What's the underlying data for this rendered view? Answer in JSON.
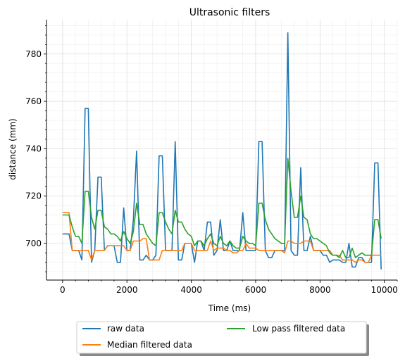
{
  "chart_data": {
    "type": "line",
    "title": "Ultrasonic filters",
    "xlabel": "Time (ms)",
    "ylabel": "distance (mm)",
    "xlim": [
      -500,
      10400
    ],
    "ylim": [
      684.5,
      794.5
    ],
    "xticks": [
      0,
      2000,
      4000,
      6000,
      8000,
      10000
    ],
    "yticks": [
      700,
      720,
      740,
      760,
      780
    ],
    "grid": true,
    "legend": "bottom-center-outside",
    "series": [
      {
        "name": "raw data",
        "color": "#1f77b4",
        "x": [
          0,
          100,
          200,
          300,
          400,
          500,
          600,
          700,
          800,
          900,
          1000,
          1100,
          1200,
          1300,
          1400,
          1500,
          1600,
          1700,
          1800,
          1900,
          2000,
          2100,
          2200,
          2300,
          2400,
          2500,
          2600,
          2700,
          2800,
          2900,
          3000,
          3100,
          3200,
          3300,
          3400,
          3500,
          3600,
          3700,
          3800,
          3900,
          4000,
          4100,
          4200,
          4300,
          4400,
          4500,
          4600,
          4700,
          4800,
          4900,
          5000,
          5100,
          5200,
          5300,
          5400,
          5500,
          5600,
          5700,
          5800,
          5900,
          6000,
          6100,
          6200,
          6300,
          6400,
          6500,
          6600,
          6700,
          6800,
          6900,
          7000,
          7100,
          7200,
          7300,
          7400,
          7500,
          7600,
          7700,
          7800,
          7900,
          8000,
          8100,
          8200,
          8300,
          8400,
          8500,
          8600,
          8700,
          8800,
          8900,
          9000,
          9100,
          9200,
          9300,
          9400,
          9500,
          9600,
          9700,
          9800,
          9900
        ],
        "y": [
          704,
          704,
          704,
          697,
          697,
          697,
          693,
          757,
          757,
          692,
          697,
          728,
          728,
          697,
          699,
          699,
          699,
          692,
          692,
          715,
          697,
          697,
          710,
          739,
          693,
          693,
          695,
          693,
          693,
          695,
          737,
          737,
          697,
          697,
          697,
          743,
          693,
          693,
          700,
          700,
          700,
          692,
          701,
          701,
          697,
          709,
          709,
          695,
          697,
          710,
          697,
          697,
          701,
          697,
          697,
          697,
          713,
          697,
          697,
          697,
          697,
          743,
          743,
          697,
          694,
          694,
          697,
          697,
          697,
          697,
          789,
          697,
          695,
          695,
          732,
          697,
          697,
          703,
          697,
          697,
          697,
          695,
          695,
          692,
          693,
          693,
          693,
          692,
          692,
          700,
          690,
          690,
          694,
          694,
          692,
          692,
          692,
          734,
          734,
          689
        ]
      },
      {
        "name": "Median filtered data",
        "color": "#ff7f0e",
        "x": [
          0,
          100,
          200,
          300,
          400,
          500,
          600,
          700,
          800,
          900,
          1000,
          1100,
          1200,
          1300,
          1400,
          1500,
          1600,
          1700,
          1800,
          1900,
          2000,
          2100,
          2200,
          2300,
          2400,
          2500,
          2600,
          2700,
          2800,
          2900,
          3000,
          3100,
          3200,
          3300,
          3400,
          3500,
          3600,
          3700,
          3800,
          3900,
          4000,
          4100,
          4200,
          4300,
          4400,
          4500,
          4600,
          4700,
          4800,
          4900,
          5000,
          5100,
          5200,
          5300,
          5400,
          5500,
          5600,
          5700,
          5800,
          5900,
          6000,
          6100,
          6200,
          6300,
          6400,
          6500,
          6600,
          6700,
          6800,
          6900,
          7000,
          7100,
          7200,
          7300,
          7400,
          7500,
          7600,
          7700,
          7800,
          7900,
          8000,
          8100,
          8200,
          8300,
          8400,
          8500,
          8600,
          8700,
          8800,
          8900,
          9000,
          9100,
          9200,
          9300,
          9400,
          9500,
          9600,
          9700,
          9800,
          9900
        ],
        "y": [
          713,
          713,
          713,
          697,
          697,
          697,
          697,
          697,
          697,
          693,
          697,
          697,
          697,
          697,
          699,
          699,
          699,
          699,
          699,
          699,
          697,
          697,
          701,
          701,
          701,
          702,
          702,
          693,
          693,
          693,
          693,
          697,
          697,
          697,
          697,
          697,
          697,
          697,
          700,
          700,
          700,
          697,
          697,
          697,
          697,
          697,
          701,
          697,
          698,
          698,
          698,
          697,
          697,
          696,
          696,
          697,
          697,
          700,
          698,
          698,
          698,
          697,
          697,
          697,
          697,
          697,
          697,
          697,
          697,
          696,
          701,
          701,
          700,
          700,
          700,
          701,
          701,
          701,
          697,
          697,
          697,
          697,
          697,
          697,
          695,
          695,
          695,
          693,
          693,
          693,
          693,
          692,
          693,
          693,
          692,
          692,
          695,
          695,
          695,
          695
        ]
      },
      {
        "name": "Low pass filtered data",
        "color": "#2ca02c",
        "x": [
          0,
          100,
          200,
          300,
          400,
          500,
          600,
          700,
          800,
          900,
          1000,
          1100,
          1200,
          1300,
          1400,
          1500,
          1600,
          1700,
          1800,
          1900,
          2000,
          2100,
          2200,
          2300,
          2400,
          2500,
          2600,
          2700,
          2800,
          2900,
          3000,
          3100,
          3200,
          3300,
          3400,
          3500,
          3600,
          3700,
          3800,
          3900,
          4000,
          4100,
          4200,
          4300,
          4400,
          4500,
          4600,
          4700,
          4800,
          4900,
          5000,
          5100,
          5200,
          5300,
          5400,
          5500,
          5600,
          5700,
          5800,
          5900,
          6000,
          6100,
          6200,
          6300,
          6400,
          6500,
          6600,
          6700,
          6800,
          6900,
          7000,
          7100,
          7200,
          7300,
          7400,
          7500,
          7600,
          7700,
          7800,
          7900,
          8000,
          8100,
          8200,
          8300,
          8400,
          8500,
          8600,
          8700,
          8800,
          8900,
          9000,
          9100,
          9200,
          9300,
          9400,
          9500,
          9600,
          9700,
          9800,
          9900
        ],
        "y": [
          712,
          712,
          712,
          707,
          703,
          703,
          700,
          722,
          722,
          711,
          706,
          714,
          714,
          707,
          706,
          704,
          704,
          703,
          701,
          705,
          702,
          700,
          705,
          717,
          708,
          708,
          704,
          702,
          700,
          699,
          713,
          713,
          709,
          706,
          704,
          714,
          709,
          709,
          706,
          704,
          703,
          699,
          701,
          701,
          699,
          702,
          704,
          700,
          699,
          703,
          700,
          699,
          701,
          699,
          698,
          698,
          703,
          701,
          700,
          700,
          699,
          717,
          717,
          710,
          706,
          704,
          702,
          701,
          700,
          700,
          736,
          722,
          711,
          711,
          720,
          711,
          710,
          704,
          702,
          702,
          701,
          700,
          699,
          696,
          695,
          695,
          694,
          697,
          694,
          694,
          698,
          694,
          695,
          696,
          695,
          695,
          695,
          710,
          710,
          702
        ]
      }
    ]
  }
}
